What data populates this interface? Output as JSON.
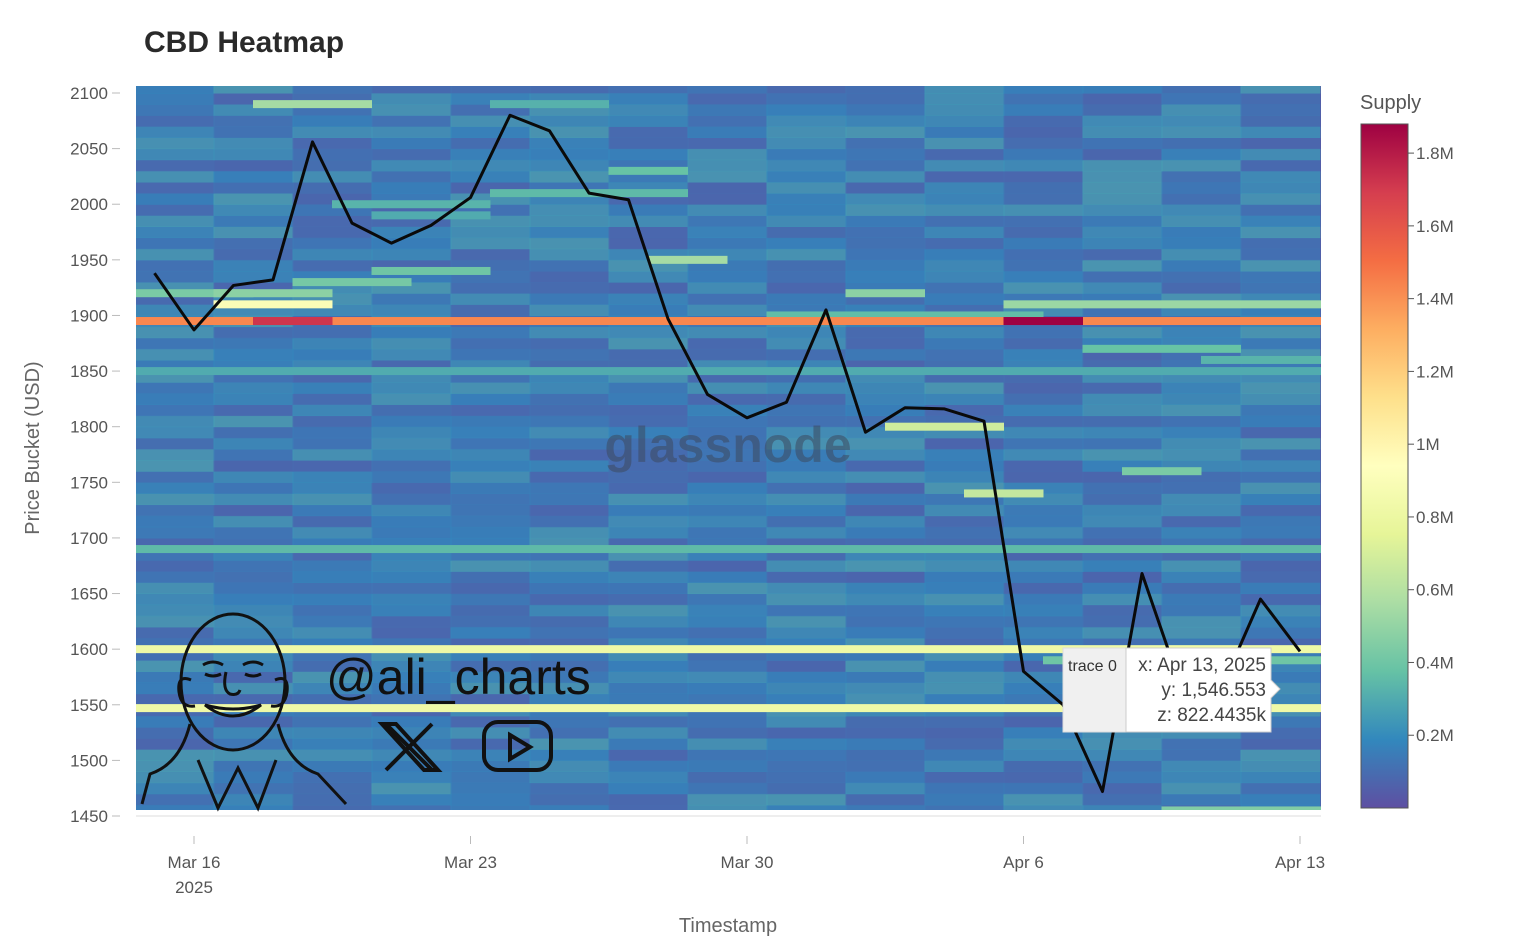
{
  "chart_data": {
    "type": "heatmap",
    "title": "CBD Heatmap",
    "xlabel": "Timestamp",
    "ylabel": "Price Bucket (USD)",
    "colorbar_title": "Supply",
    "ylim": [
      1450,
      2100
    ],
    "xlim": [
      "2025-03-15",
      "2025-04-13"
    ],
    "x_ticks": [
      {
        "date": "2025-03-16",
        "label": "Mar 16",
        "sublabel": "2025"
      },
      {
        "date": "2025-03-23",
        "label": "Mar 23",
        "sublabel": ""
      },
      {
        "date": "2025-03-30",
        "label": "Mar 30",
        "sublabel": ""
      },
      {
        "date": "2025-04-06",
        "label": "Apr 6",
        "sublabel": ""
      },
      {
        "date": "2025-04-13",
        "label": "Apr 13",
        "sublabel": ""
      }
    ],
    "y_ticks": [
      1450,
      1500,
      1550,
      1600,
      1650,
      1700,
      1750,
      1800,
      1850,
      1900,
      1950,
      2000,
      2050,
      2100
    ],
    "colorscale": [
      "#5e4fa2",
      "#3288bd",
      "#66c2a5",
      "#abdda4",
      "#e6f598",
      "#ffffbf",
      "#fee08b",
      "#fdae61",
      "#f46d43",
      "#d53e4f",
      "#9e0142"
    ],
    "z_range": [
      0,
      1880000
    ],
    "colorbar_ticks": [
      {
        "value": 200000,
        "label": "0.2M"
      },
      {
        "value": 400000,
        "label": "0.4M"
      },
      {
        "value": 600000,
        "label": "0.6M"
      },
      {
        "value": 800000,
        "label": "0.8M"
      },
      {
        "value": 1000000,
        "label": "1M"
      },
      {
        "value": 1200000,
        "label": "1.2M"
      },
      {
        "value": 1400000,
        "label": "1.4M"
      },
      {
        "value": 1600000,
        "label": "1.6M"
      },
      {
        "value": 1800000,
        "label": "1.8M"
      }
    ],
    "band_step": 10,
    "background_supply": 90000,
    "bands": [
      {
        "price": 2090,
        "from": "2025-03-18",
        "to": "2025-03-20",
        "supply": 550000
      },
      {
        "price": 2090,
        "from": "2025-03-24",
        "to": "2025-03-26",
        "supply": 320000
      },
      {
        "price": 2030,
        "from": "2025-03-27",
        "to": "2025-03-28",
        "supply": 380000
      },
      {
        "price": 2010,
        "from": "2025-03-24",
        "to": "2025-03-28",
        "supply": 350000
      },
      {
        "price": 2000,
        "from": "2025-03-20",
        "to": "2025-03-23",
        "supply": 330000
      },
      {
        "price": 1990,
        "from": "2025-03-21",
        "to": "2025-03-23",
        "supply": 300000
      },
      {
        "price": 1950,
        "from": "2025-03-28",
        "to": "2025-03-29",
        "supply": 550000
      },
      {
        "price": 1940,
        "from": "2025-03-21",
        "to": "2025-03-23",
        "supply": 400000
      },
      {
        "price": 1930,
        "from": "2025-03-19",
        "to": "2025-03-21",
        "supply": 420000
      },
      {
        "price": 1920,
        "from": "2025-03-15",
        "to": "2025-03-17",
        "supply": 430000
      },
      {
        "price": 1920,
        "from": "2025-03-17",
        "to": "2025-03-19",
        "supply": 480000
      },
      {
        "price": 1920,
        "from": "2025-04-02",
        "to": "2025-04-03",
        "supply": 480000
      },
      {
        "price": 1910,
        "from": "2025-03-17",
        "to": "2025-03-19",
        "supply": 900000
      },
      {
        "price": 1910,
        "from": "2025-04-06",
        "to": "2025-04-13",
        "supply": 520000
      },
      {
        "price": 1900,
        "from": "2025-03-31",
        "to": "2025-04-06",
        "supply": 360000
      },
      {
        "price": 1895,
        "from": "2025-03-15",
        "to": "2025-04-13",
        "supply": 1430000
      },
      {
        "price": 1895,
        "from": "2025-03-18",
        "to": "2025-03-19",
        "supply": 1720000
      },
      {
        "price": 1895,
        "from": "2025-04-06",
        "to": "2025-04-07",
        "supply": 1880000
      },
      {
        "price": 1870,
        "from": "2025-04-08",
        "to": "2025-04-11",
        "supply": 380000
      },
      {
        "price": 1860,
        "from": "2025-04-11",
        "to": "2025-04-13",
        "supply": 330000
      },
      {
        "price": 1850,
        "from": "2025-03-15",
        "to": "2025-04-13",
        "supply": 300000
      },
      {
        "price": 1800,
        "from": "2025-04-03",
        "to": "2025-04-05",
        "supply": 680000
      },
      {
        "price": 1740,
        "from": "2025-04-05",
        "to": "2025-04-06",
        "supply": 640000
      },
      {
        "price": 1760,
        "from": "2025-04-09",
        "to": "2025-04-10",
        "supply": 430000
      },
      {
        "price": 1690,
        "from": "2025-03-15",
        "to": "2025-04-13",
        "supply": 350000
      },
      {
        "price": 1600,
        "from": "2025-03-15",
        "to": "2025-04-13",
        "supply": 820000
      },
      {
        "price": 1590,
        "from": "2025-04-07",
        "to": "2025-04-13",
        "supply": 400000
      },
      {
        "price": 1547,
        "from": "2025-03-15",
        "to": "2025-04-13",
        "supply": 822443
      },
      {
        "price": 1455,
        "from": "2025-04-10",
        "to": "2025-04-13",
        "supply": 450000
      }
    ],
    "price_line": {
      "name": "price",
      "points": [
        [
          "2025-03-15",
          1938
        ],
        [
          "2025-03-16",
          1887
        ],
        [
          "2025-03-17",
          1927
        ],
        [
          "2025-03-18",
          1932
        ],
        [
          "2025-03-19",
          2056
        ],
        [
          "2025-03-20",
          1983
        ],
        [
          "2025-03-21",
          1965
        ],
        [
          "2025-03-22",
          1981
        ],
        [
          "2025-03-23",
          2006
        ],
        [
          "2025-03-24",
          2080
        ],
        [
          "2025-03-25",
          2066
        ],
        [
          "2025-03-26",
          2010
        ],
        [
          "2025-03-27",
          2004
        ],
        [
          "2025-03-28",
          1897
        ],
        [
          "2025-03-29",
          1829
        ],
        [
          "2025-03-30",
          1808
        ],
        [
          "2025-03-31",
          1822
        ],
        [
          "2025-04-01",
          1905
        ],
        [
          "2025-04-02",
          1795
        ],
        [
          "2025-04-03",
          1817
        ],
        [
          "2025-04-04",
          1816
        ],
        [
          "2025-04-05",
          1805
        ],
        [
          "2025-04-06",
          1580
        ],
        [
          "2025-04-07",
          1550
        ],
        [
          "2025-04-08",
          1472
        ],
        [
          "2025-04-09",
          1668
        ],
        [
          "2025-04-10",
          1565
        ],
        [
          "2025-04-11",
          1564
        ],
        [
          "2025-04-12",
          1645
        ],
        [
          "2025-04-13",
          1598
        ]
      ]
    },
    "tooltip": {
      "trace": "trace 0",
      "x": "x: Apr 13, 2025",
      "y": "y: 1,546.553",
      "z": "z: 822.4435k"
    },
    "watermark": "glassnode",
    "handle": "@ali_charts"
  }
}
